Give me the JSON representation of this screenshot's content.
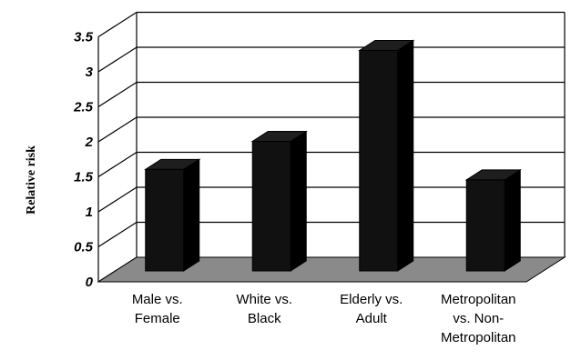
{
  "chart_data": {
    "type": "bar",
    "title": "",
    "xlabel": "",
    "ylabel": "Relative risk",
    "ylim": [
      0,
      3.5
    ],
    "yticks": [
      "0",
      "0.5",
      "1",
      "1.5",
      "2",
      "2.5",
      "3",
      "3.5"
    ],
    "categories": [
      [
        "Male vs.",
        "Female"
      ],
      [
        "White vs.",
        "Black"
      ],
      [
        "Elderly vs.",
        "Adult"
      ],
      [
        "Metropolitan",
        "vs. Non-",
        "Metropolitan"
      ]
    ],
    "values": [
      1.45,
      1.85,
      3.15,
      1.3
    ],
    "grid": true,
    "style": "3d",
    "colors": {
      "bar": "#111111",
      "bar_side": "#000000",
      "floor": "#8a8a8a",
      "grid": "#000000"
    }
  }
}
